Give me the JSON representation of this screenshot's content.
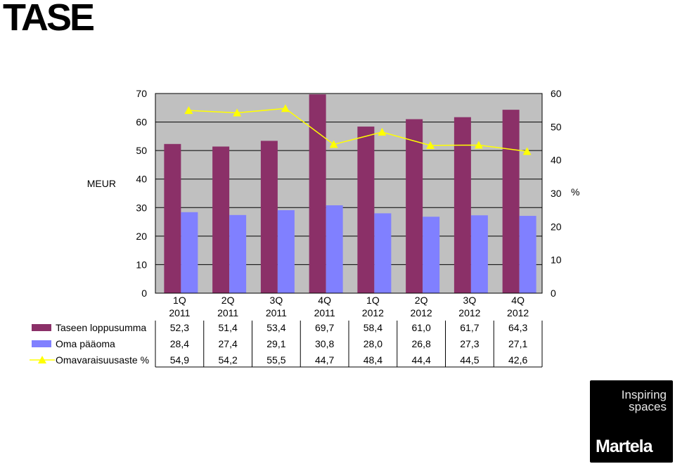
{
  "page": {
    "title": "TASE"
  },
  "chart_data": {
    "type": "bar",
    "categories": [
      [
        "1Q",
        "2011"
      ],
      [
        "2Q",
        "2011"
      ],
      [
        "3Q",
        "2011"
      ],
      [
        "4Q",
        "2011"
      ],
      [
        "1Q",
        "2012"
      ],
      [
        "2Q",
        "2012"
      ],
      [
        "3Q",
        "2012"
      ],
      [
        "4Q",
        "2012"
      ]
    ],
    "ylabel_left": "MEUR",
    "ylabel_right": "%",
    "ylim_left": [
      0,
      70
    ],
    "ylim_right": [
      0,
      60
    ],
    "yticks_left": [
      0,
      10,
      20,
      30,
      40,
      50,
      60,
      70
    ],
    "yticks_right": [
      0,
      10,
      20,
      30,
      40,
      50,
      60
    ],
    "grid": true,
    "plot_background": "#c0c0c0",
    "legend_placement": "bottom-table",
    "series": [
      {
        "name": "Taseen loppusumma",
        "type": "bar",
        "axis": "left",
        "color": "#8b3068",
        "values": [
          52.3,
          51.4,
          53.4,
          69.7,
          58.4,
          61.0,
          61.7,
          64.3
        ],
        "labels": [
          "52,3",
          "51,4",
          "53,4",
          "69,7",
          "58,4",
          "61,0",
          "61,7",
          "64,3"
        ]
      },
      {
        "name": "Oma pääoma",
        "type": "bar",
        "axis": "left",
        "color": "#8080ff",
        "values": [
          28.4,
          27.4,
          29.1,
          30.8,
          28.0,
          26.8,
          27.3,
          27.1
        ],
        "labels": [
          "28,4",
          "27,4",
          "29,1",
          "30,8",
          "28,0",
          "26,8",
          "27,3",
          "27,1"
        ]
      },
      {
        "name": "Omavaraisuusaste %",
        "type": "line",
        "axis": "right",
        "color": "#ffff00",
        "marker": "triangle",
        "values": [
          54.9,
          54.2,
          55.5,
          44.7,
          48.4,
          44.4,
          44.5,
          42.6
        ],
        "labels": [
          "54,9",
          "54,2",
          "55,5",
          "44,7",
          "48,4",
          "44,4",
          "44,5",
          "42,6"
        ]
      }
    ]
  },
  "logo": {
    "tagline_1": "Inspiring",
    "tagline_2": "spaces",
    "brand": "Martela"
  }
}
